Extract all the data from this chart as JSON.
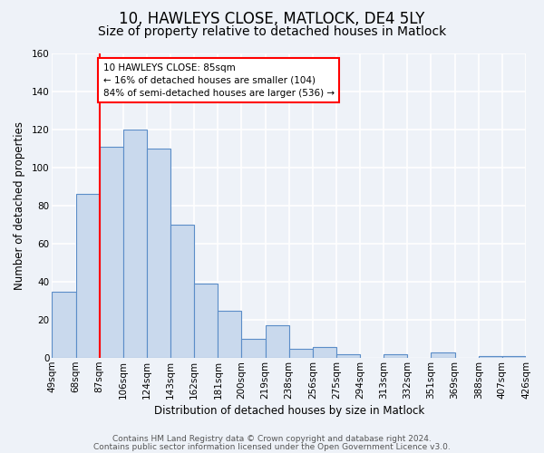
{
  "title": "10, HAWLEYS CLOSE, MATLOCK, DE4 5LY",
  "subtitle": "Size of property relative to detached houses in Matlock",
  "xlabel": "Distribution of detached houses by size in Matlock",
  "ylabel": "Number of detached properties",
  "bin_edges": [
    "49sqm",
    "68sqm",
    "87sqm",
    "106sqm",
    "124sqm",
    "143sqm",
    "162sqm",
    "181sqm",
    "200sqm",
    "219sqm",
    "238sqm",
    "256sqm",
    "275sqm",
    "294sqm",
    "313sqm",
    "332sqm",
    "351sqm",
    "369sqm",
    "388sqm",
    "407sqm",
    "426sqm"
  ],
  "bar_values": [
    35,
    86,
    111,
    120,
    110,
    70,
    39,
    25,
    10,
    17,
    5,
    6,
    2,
    0,
    2,
    0,
    3,
    0,
    1,
    1
  ],
  "bar_color": "#c9d9ed",
  "bar_edge_color": "#5b8dc8",
  "red_line_index": 2,
  "annotation_text": "10 HAWLEYS CLOSE: 85sqm\n← 16% of detached houses are smaller (104)\n84% of semi-detached houses are larger (536) →",
  "annotation_box_color": "white",
  "annotation_box_edge_color": "red",
  "red_line_color": "red",
  "ylim": [
    0,
    160
  ],
  "yticks": [
    0,
    20,
    40,
    60,
    80,
    100,
    120,
    140,
    160
  ],
  "footer_line1": "Contains HM Land Registry data © Crown copyright and database right 2024.",
  "footer_line2": "Contains public sector information licensed under the Open Government Licence v3.0.",
  "background_color": "#eef2f8",
  "grid_color": "white",
  "title_fontsize": 12,
  "subtitle_fontsize": 10,
  "axis_label_fontsize": 8.5,
  "tick_fontsize": 7.5,
  "footer_fontsize": 6.5
}
